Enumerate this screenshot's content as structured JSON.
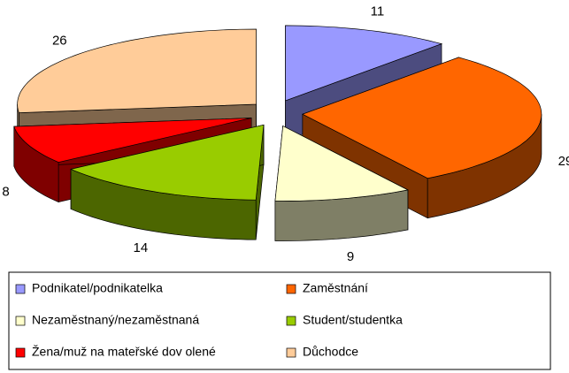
{
  "chart_data": {
    "type": "pie",
    "categories": [
      "Podnikatel/podnikatelka",
      "Zaměstnání",
      "Nezaměstnaný/nezaměstnaná",
      "Student/studentka",
      "Žena/muž na mateřské dov olené",
      "Důchodce"
    ],
    "values": [
      11,
      29,
      9,
      14,
      8,
      26
    ],
    "colors": [
      "#9999ff",
      "#ff6600",
      "#ffffcc",
      "#99cc00",
      "#ff0000",
      "#ffcc99"
    ]
  }
}
